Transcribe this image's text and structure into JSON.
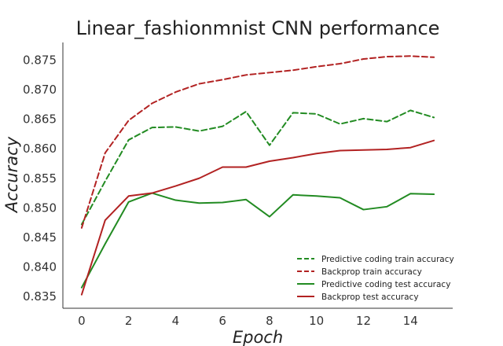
{
  "chart_data": {
    "type": "line",
    "title": "Linear_fashionmnist CNN performance",
    "xlabel": "Epoch",
    "ylabel": "Accuracy",
    "xlim": [
      -0.8,
      15.8
    ],
    "ylim": [
      0.833,
      0.878
    ],
    "xticks": [
      0,
      2,
      4,
      6,
      8,
      10,
      12,
      14
    ],
    "yticks": [
      0.835,
      0.84,
      0.845,
      0.85,
      0.855,
      0.86,
      0.865,
      0.87,
      0.875
    ],
    "ytick_labels": [
      "0.835",
      "0.840",
      "0.845",
      "0.850",
      "0.855",
      "0.860",
      "0.865",
      "0.870",
      "0.875"
    ],
    "grid": false,
    "legend_position": "lower-right",
    "x": [
      0,
      1,
      2,
      3,
      4,
      5,
      6,
      7,
      8,
      9,
      10,
      11,
      12,
      13,
      14,
      15
    ],
    "series": [
      {
        "name": "Predictive coding train accuracy",
        "color": "#228b22",
        "dash": "dashed",
        "values": [
          0.8472,
          0.8545,
          0.8615,
          0.8636,
          0.8637,
          0.863,
          0.8638,
          0.8663,
          0.8606,
          0.8661,
          0.8659,
          0.8642,
          0.8651,
          0.8646,
          0.8665,
          0.8653
        ]
      },
      {
        "name": "Backprop train accuracy",
        "color": "#b22222",
        "dash": "dashed",
        "values": [
          0.8466,
          0.8593,
          0.8648,
          0.8677,
          0.8696,
          0.871,
          0.8717,
          0.8725,
          0.8729,
          0.8733,
          0.8739,
          0.8744,
          0.8752,
          0.8756,
          0.8757,
          0.8755
        ]
      },
      {
        "name": "Predictive coding test accuracy",
        "color": "#228b22",
        "dash": "solid",
        "values": [
          0.8365,
          0.8439,
          0.851,
          0.8525,
          0.8513,
          0.8508,
          0.8509,
          0.8514,
          0.8485,
          0.8522,
          0.852,
          0.8517,
          0.8497,
          0.8502,
          0.8524,
          0.8523
        ]
      },
      {
        "name": "Backprop test accuracy",
        "color": "#b22222",
        "dash": "solid",
        "values": [
          0.8353,
          0.8479,
          0.852,
          0.8525,
          0.8537,
          0.855,
          0.8569,
          0.8569,
          0.8579,
          0.8585,
          0.8592,
          0.8597,
          0.8598,
          0.8599,
          0.8602,
          0.8614
        ]
      }
    ]
  }
}
